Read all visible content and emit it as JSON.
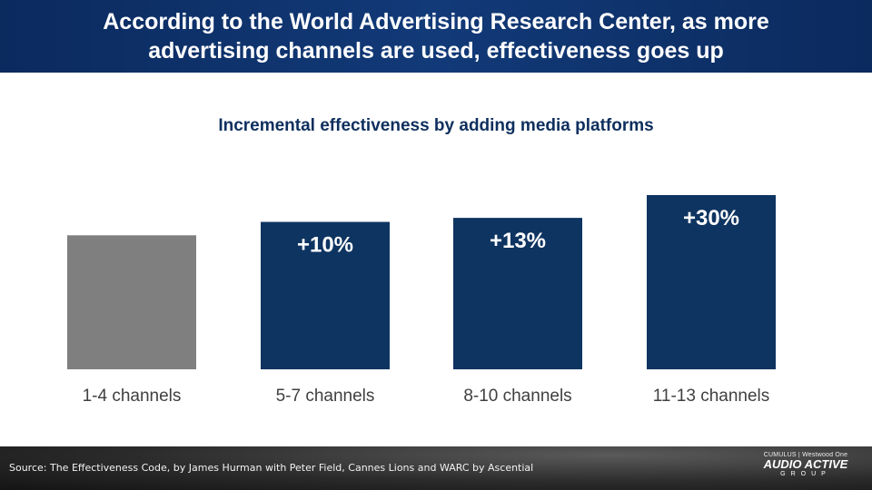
{
  "header": {
    "title_line1": "According to the World Advertising Research Center, as more",
    "title_line2": "advertising channels are used, effectiveness goes up"
  },
  "chart_data": {
    "type": "bar",
    "title": "Incremental effectiveness by adding media platforms",
    "categories": [
      "1-4 channels",
      "5-7 channels",
      "8-10 channels",
      "11-13 channels"
    ],
    "values": [
      100,
      110,
      113,
      130
    ],
    "data_labels": [
      "",
      "+10%",
      "+13%",
      "+30%"
    ],
    "colors": [
      "#7f7f7f",
      "#0e3461",
      "#0e3461",
      "#0e3461"
    ],
    "label_color": "#ffffff",
    "tick_label_color": "#404040",
    "ylim": [
      0,
      130
    ],
    "grid": false,
    "legend": "none"
  },
  "footer": {
    "source": "Source: The Effectiveness Code, by James Hurman with Peter Field, Cannes Lions and WARC by Ascential",
    "logo_top": "CUMULUS | Westwood One",
    "logo_main": "AUDIO ACTIVE",
    "logo_sub": "GROUP"
  }
}
